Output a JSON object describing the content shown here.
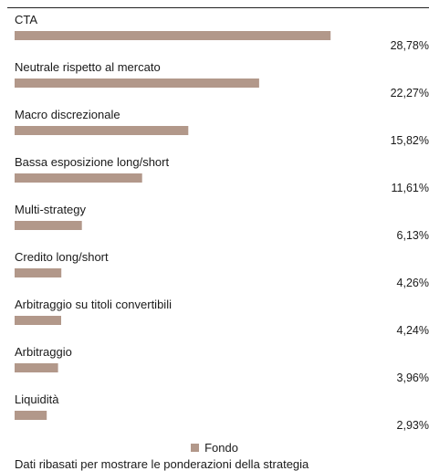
{
  "chart_data": {
    "type": "bar",
    "orientation": "horizontal",
    "categories": [
      "CTA",
      "Neutrale rispetto al mercato",
      "Macro discrezionale",
      "Bassa esposizione long/short",
      "Multi-strategy",
      "Credito long/short",
      "Arbitraggio su titoli convertibili",
      "Arbitraggio",
      "Liquidità"
    ],
    "values": [
      28.78,
      22.27,
      15.82,
      11.61,
      6.13,
      4.26,
      4.24,
      3.96,
      2.93
    ],
    "value_labels": [
      "28,78%",
      "22,27%",
      "15,82%",
      "11,61%",
      "6,13%",
      "4,26%",
      "4,24%",
      "3,96%",
      "2,93%"
    ],
    "series": [
      {
        "name": "Fondo",
        "values": [
          28.78,
          22.27,
          15.82,
          11.61,
          6.13,
          4.26,
          4.24,
          3.96,
          2.93
        ]
      }
    ],
    "xlim": [
      0,
      33
    ],
    "grid": false,
    "legend": "bottom-center"
  },
  "legend": {
    "label": "Fondo"
  },
  "footnote": "Dati ribasati per mostrare le ponderazioni della strategia",
  "colors": {
    "bar": "#b2988a",
    "text": "#1a1a1a",
    "rule": "#222222"
  }
}
